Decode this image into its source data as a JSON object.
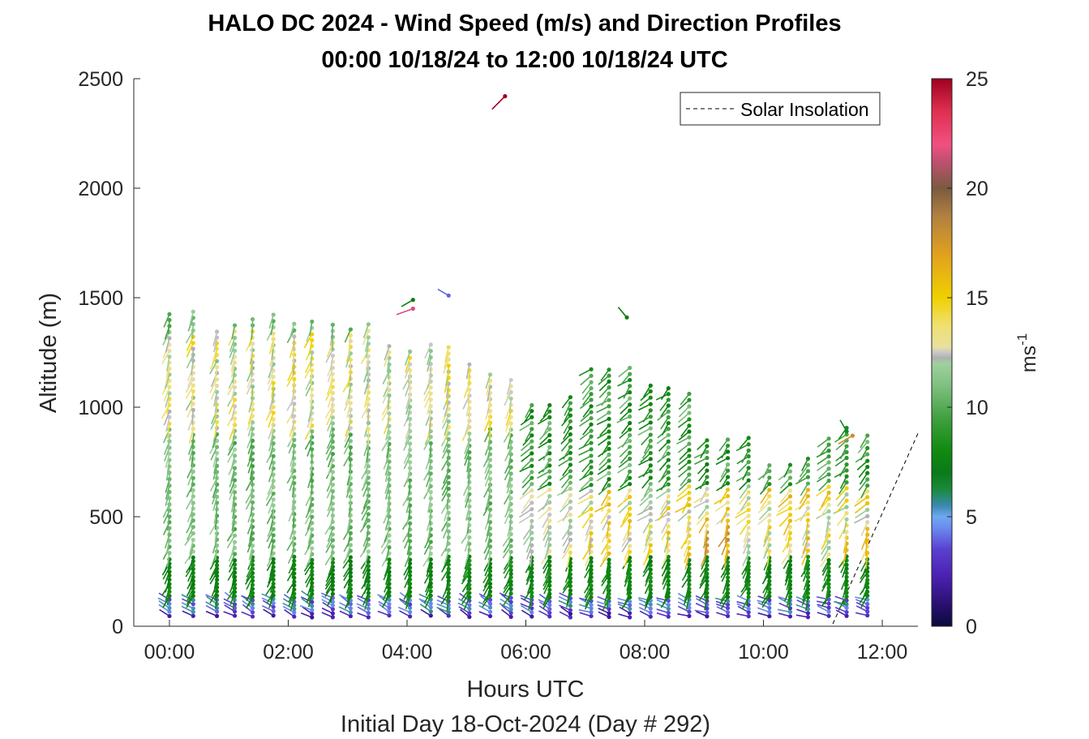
{
  "chart_data": {
    "type": "scatter",
    "title": "HALO DC 2024 - Wind Speed (m/s) and Direction Profiles",
    "subtitle": "00:00 10/18/24 to 12:00 10/18/24  UTC",
    "xlabel": "Hours UTC",
    "xlabel2": "Initial Day 18-Oct-2024 (Day # 292)",
    "ylabel": "Altitude (m)",
    "colorbar_label": "ms",
    "colorbar_label_exp": "-1",
    "xlim": [
      -0.6,
      12.6
    ],
    "ylim": [
      0,
      2500
    ],
    "xticks": [
      0,
      2,
      4,
      6,
      8,
      10,
      12
    ],
    "xtick_labels": [
      "00:00",
      "02:00",
      "04:00",
      "06:00",
      "08:00",
      "10:00",
      "12:00"
    ],
    "yticks": [
      0,
      500,
      1000,
      1500,
      2000,
      2500
    ],
    "ytick_labels": [
      "0",
      "500",
      "1000",
      "1500",
      "2000",
      "2500"
    ],
    "clim": [
      0,
      25
    ],
    "cticks": [
      0,
      5,
      10,
      15,
      20,
      25
    ],
    "ctick_labels": [
      "0",
      "5",
      "10",
      "15",
      "20",
      "25"
    ],
    "legend": {
      "entries": [
        "Solar Insolation"
      ],
      "placement": "top-right"
    },
    "solar_insolation": {
      "x": [
        -0.6,
        11.15,
        12.6
      ],
      "y": [
        0,
        0,
        880
      ]
    },
    "profile_times": [
      0,
      0.4,
      0.8,
      1.1,
      1.4,
      1.75,
      2.1,
      2.4,
      2.75,
      3.05,
      3.35,
      3.7,
      4.05,
      4.4,
      4.7,
      5.05,
      5.4,
      5.75,
      6.1,
      6.4,
      6.75,
      7.1,
      7.4,
      7.75,
      8.1,
      8.4,
      8.75,
      9.05,
      9.4,
      9.75,
      10.1,
      10.45,
      10.75,
      11.1,
      11.4,
      11.75
    ],
    "profile_tops": [
      1450,
      1440,
      1350,
      1400,
      1410,
      1440,
      1400,
      1410,
      1390,
      1370,
      1390,
      1290,
      1280,
      1310,
      1290,
      1210,
      1170,
      1140,
      1030,
      1030,
      1070,
      1180,
      1190,
      1180,
      1120,
      1090,
      1080,
      870,
      880,
      860,
      740,
      750,
      790,
      870,
      910,
      880
    ],
    "outliers": [
      {
        "t": 5.65,
        "alt": 2420,
        "speed": 25,
        "dir": 225
      },
      {
        "t": 4.1,
        "alt": 1490,
        "speed": 7,
        "dir": 240
      },
      {
        "t": 4.1,
        "alt": 1450,
        "speed": 22,
        "dir": 250
      },
      {
        "t": 4.7,
        "alt": 1510,
        "speed": 4,
        "dir": 300
      },
      {
        "t": 7.7,
        "alt": 1410,
        "speed": 7,
        "dir": 320
      },
      {
        "t": 11.4,
        "alt": 890,
        "speed": 6,
        "dir": 330
      },
      {
        "t": 11.5,
        "alt": 870,
        "speed": 18,
        "dir": 240
      }
    ]
  }
}
